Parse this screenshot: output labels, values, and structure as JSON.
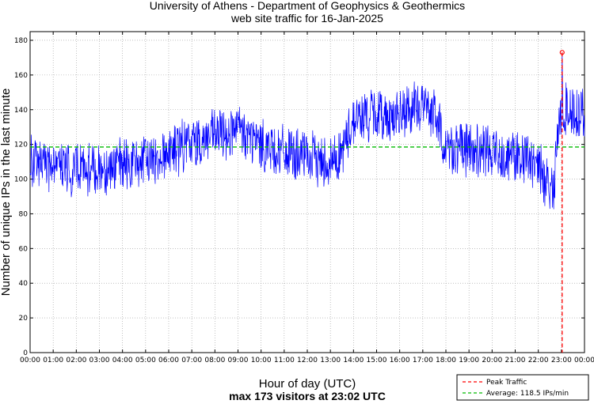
{
  "chart_data": {
    "type": "line",
    "title": [
      "University of Athens - Department of Geophysics & Geothermics",
      "web site traffic for 16-Jan-2025"
    ],
    "xlabel": "Hour of day (UTC)",
    "ylabel": "Number of unique IPs in the last minute",
    "caption": "max 173 visitors at 23:02 UTC",
    "x_ticks": [
      "00:00",
      "01:00",
      "02:00",
      "03:00",
      "04:00",
      "05:00",
      "06:00",
      "07:00",
      "08:00",
      "09:00",
      "10:00",
      "11:00",
      "12:00",
      "13:00",
      "14:00",
      "15:00",
      "16:00",
      "17:00",
      "18:00",
      "19:00",
      "20:00",
      "21:00",
      "22:00",
      "23:00",
      "00:00"
    ],
    "x_unit": "hours",
    "xlim": [
      0,
      24
    ],
    "ylim": [
      0,
      185
    ],
    "y_ticks": [
      0,
      20,
      40,
      60,
      80,
      100,
      120,
      140,
      160,
      180
    ],
    "grid": true,
    "series": [
      {
        "name": "",
        "color": "#0000ff",
        "hourly_base": [
          [
            0,
            110
          ],
          [
            1,
            106
          ],
          [
            2,
            105
          ],
          [
            3,
            106
          ],
          [
            4,
            108
          ],
          [
            5,
            110
          ],
          [
            6,
            116
          ],
          [
            7,
            121
          ],
          [
            8,
            125
          ],
          [
            9,
            128
          ],
          [
            10,
            120
          ],
          [
            11,
            115
          ],
          [
            12,
            112
          ],
          [
            13,
            110
          ],
          [
            13.5,
            115
          ],
          [
            14,
            135
          ],
          [
            15,
            137
          ],
          [
            16,
            136
          ],
          [
            17,
            143
          ],
          [
            17.5,
            138
          ],
          [
            18,
            118
          ],
          [
            19,
            117
          ],
          [
            20,
            115
          ],
          [
            21,
            114
          ],
          [
            22,
            108
          ],
          [
            22.3,
            100
          ],
          [
            22.7,
            96
          ],
          [
            22.8,
            120
          ],
          [
            23,
            140
          ],
          [
            24,
            138
          ]
        ],
        "noise_amplitude": 14,
        "peak": {
          "time": "23:02",
          "value": 173
        }
      }
    ],
    "peak_marker": {
      "x": 23.033,
      "y": 173,
      "color": "#ff0000"
    },
    "average": {
      "value": 118.5,
      "color": "#00bb00"
    },
    "legend": {
      "placement": "bottom-right",
      "entries": [
        {
          "label": "Peak Traffic",
          "color": "#ff0000",
          "style": "dashed"
        },
        {
          "label": "Average: 118.5 IPs/min",
          "color": "#00bb00",
          "style": "dashed"
        }
      ]
    }
  }
}
